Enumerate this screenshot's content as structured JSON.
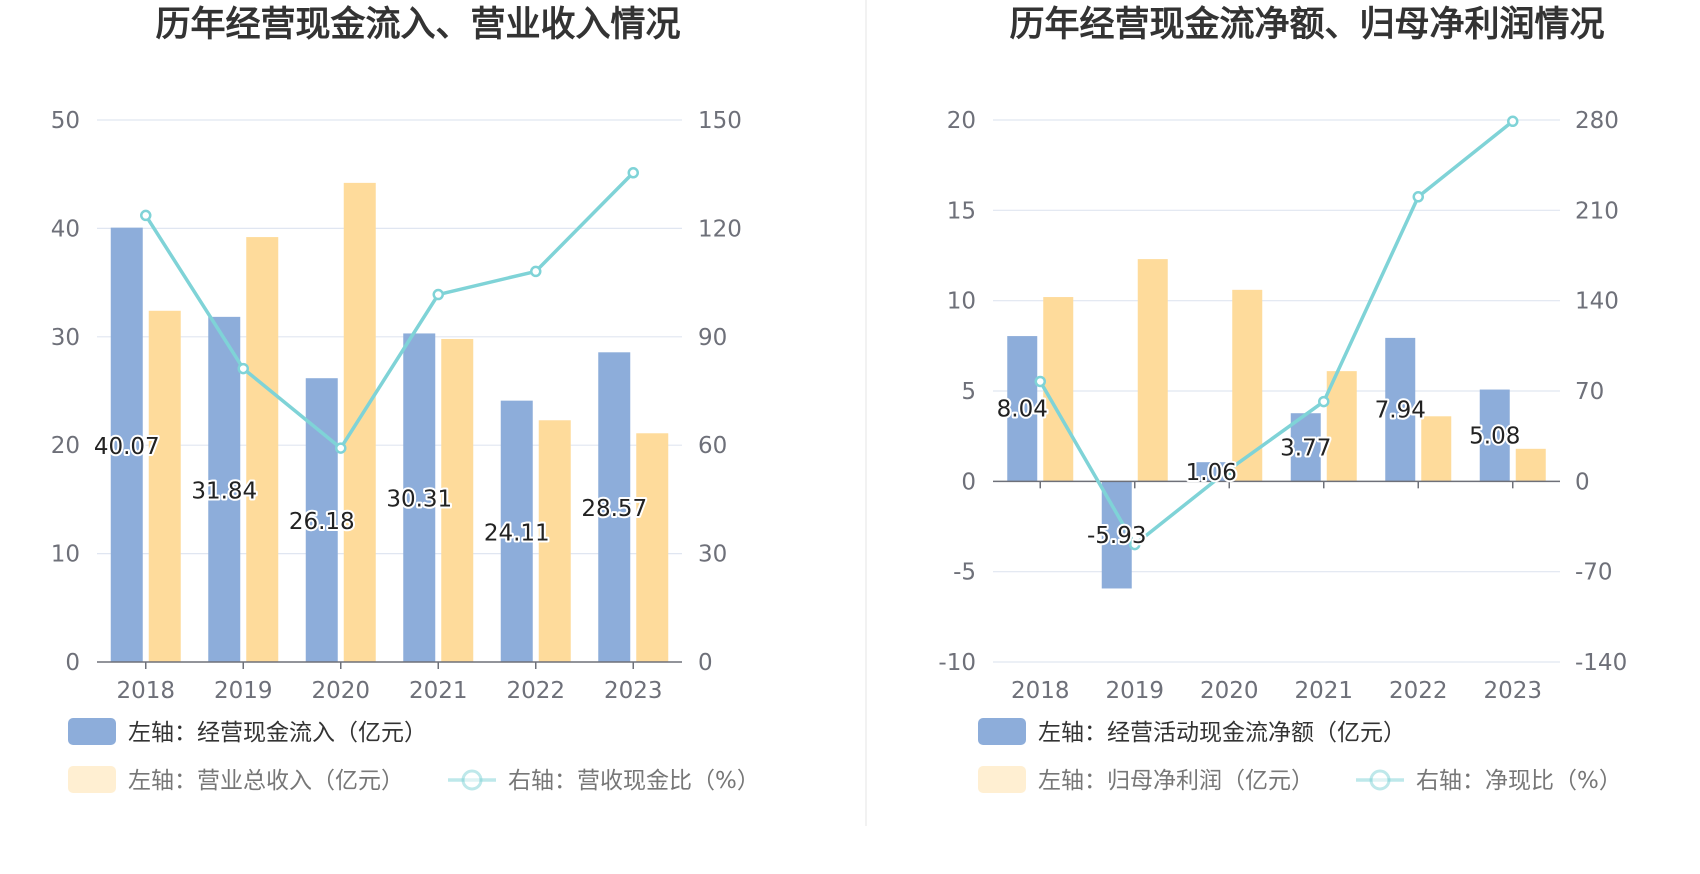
{
  "colors": {
    "bar_blue": "#8dadda",
    "bar_orange": "#fedb9b",
    "line": "#7fd3d7",
    "grid": "#e0e6f1",
    "axis": "#6e7079",
    "divider": "#eeeeee"
  },
  "chart_data": [
    {
      "type": "bar",
      "title": "历年经营现金流入、营业收入情况",
      "categories": [
        "2018",
        "2019",
        "2020",
        "2021",
        "2022",
        "2023"
      ],
      "left_axis": {
        "min": 0,
        "max": 50,
        "ticks": [
          "0",
          "10",
          "20",
          "30",
          "40",
          "50"
        ]
      },
      "right_axis": {
        "min": 0,
        "max": 150,
        "ticks": [
          "0",
          "30",
          "60",
          "90",
          "120",
          "150"
        ]
      },
      "series": [
        {
          "name": "左轴：经营现金流入（亿元）",
          "axis": "left",
          "kind": "bar",
          "color": "#8dadda",
          "values": [
            40.07,
            31.84,
            26.18,
            30.31,
            24.11,
            28.57
          ],
          "labels": [
            "40.07",
            "31.84",
            "26.18",
            "30.31",
            "24.11",
            "28.57"
          ]
        },
        {
          "name": "左轴：营业总收入（亿元）",
          "axis": "left",
          "kind": "bar",
          "color": "#fedb9b",
          "values": [
            32.4,
            39.2,
            44.2,
            29.8,
            22.3,
            21.1
          ]
        },
        {
          "name": "右轴：营收现金比（%）",
          "axis": "right",
          "kind": "line",
          "color": "#7fd3d7",
          "values": [
            123.6,
            81.2,
            59.2,
            101.7,
            108.1,
            135.4
          ]
        }
      ]
    },
    {
      "type": "bar",
      "title": "历年经营现金流净额、归母净利润情况",
      "categories": [
        "2018",
        "2019",
        "2020",
        "2021",
        "2022",
        "2023"
      ],
      "left_axis": {
        "min": -10,
        "max": 20,
        "ticks": [
          "-10",
          "-5",
          "0",
          "5",
          "10",
          "15",
          "20"
        ]
      },
      "right_axis": {
        "min": -140,
        "max": 280,
        "ticks": [
          "-140",
          "-70",
          "0",
          "70",
          "140",
          "210",
          "280"
        ]
      },
      "series": [
        {
          "name": "左轴：经营活动现金流净额（亿元）",
          "axis": "left",
          "kind": "bar",
          "color": "#8dadda",
          "values": [
            8.04,
            -5.93,
            1.06,
            3.77,
            7.94,
            5.08
          ],
          "labels": [
            "8.04",
            "-5.93",
            "1.06",
            "3.77",
            "7.94",
            "5.08"
          ]
        },
        {
          "name": "左轴：归母净利润（亿元）",
          "axis": "left",
          "kind": "bar",
          "color": "#fedb9b",
          "values": [
            10.2,
            12.3,
            10.6,
            6.1,
            3.6,
            1.8
          ]
        },
        {
          "name": "右轴：净现比（%）",
          "axis": "right",
          "kind": "line",
          "color": "#7fd3d7",
          "values": [
            77.4,
            -49.0,
            9.2,
            61.8,
            220.5,
            279.0
          ]
        }
      ]
    }
  ]
}
